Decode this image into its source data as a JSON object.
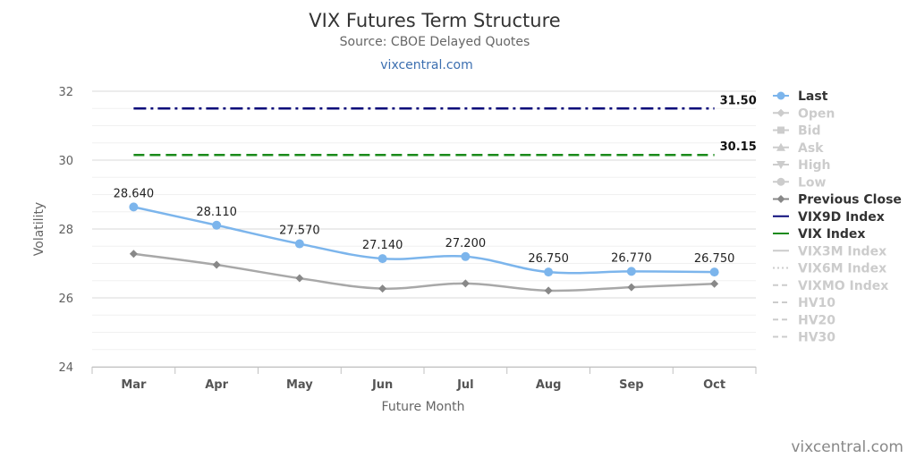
{
  "chart_data": {
    "type": "line",
    "title": "VIX Futures Term Structure",
    "subtitle": "Source: CBOE Delayed Quotes",
    "site_link": "vixcentral.com",
    "credit": "vixcentral.com",
    "xlabel": "Future Month",
    "ylabel": "Volatility",
    "categories": [
      "Mar",
      "Apr",
      "May",
      "Jun",
      "Jul",
      "Aug",
      "Sep",
      "Oct"
    ],
    "ylim": [
      24,
      32
    ],
    "yticks": [
      "24",
      "26",
      "28",
      "30",
      "32"
    ],
    "grid": true,
    "legend_position": "right",
    "series": [
      {
        "name": "Last",
        "values": [
          28.64,
          28.11,
          27.57,
          27.14,
          27.2,
          26.75,
          26.77,
          26.75
        ],
        "labels": [
          "28.640",
          "28.110",
          "27.570",
          "27.140",
          "27.200",
          "26.750",
          "26.770",
          "26.750"
        ],
        "color": "#7cb5ec",
        "marker": "circle",
        "active": true
      },
      {
        "name": "Previous Close",
        "values": [
          27.28,
          26.96,
          26.57,
          26.27,
          26.42,
          26.21,
          26.31,
          26.41
        ],
        "color": "#a8a8a8",
        "marker_color": "#888888",
        "marker": "diamond",
        "active": true
      }
    ],
    "reference_lines": [
      {
        "name": "VIX9D Index",
        "value": 31.5,
        "label": "31.50",
        "color": "#0b0b7a",
        "style": "dashdot"
      },
      {
        "name": "VIX Index",
        "value": 30.15,
        "label": "30.15",
        "color": "#1a8a1a",
        "style": "dash"
      }
    ],
    "legend": [
      {
        "name": "Last",
        "active": true,
        "color": "#7cb5ec",
        "symbol": "circle"
      },
      {
        "name": "Open",
        "active": false,
        "color": "#cccccc",
        "symbol": "diamond"
      },
      {
        "name": "Bid",
        "active": false,
        "color": "#cccccc",
        "symbol": "square"
      },
      {
        "name": "Ask",
        "active": false,
        "color": "#cccccc",
        "symbol": "triangle"
      },
      {
        "name": "High",
        "active": false,
        "color": "#cccccc",
        "symbol": "triangle-down"
      },
      {
        "name": "Low",
        "active": false,
        "color": "#cccccc",
        "symbol": "circle"
      },
      {
        "name": "Previous Close",
        "active": true,
        "color": "#888888",
        "symbol": "diamond"
      },
      {
        "name": "VIX9D Index",
        "active": true,
        "color": "#0b0b7a",
        "symbol": "line"
      },
      {
        "name": "VIX Index",
        "active": true,
        "color": "#1a8a1a",
        "symbol": "line"
      },
      {
        "name": "VIX3M Index",
        "active": false,
        "color": "#cccccc",
        "symbol": "line"
      },
      {
        "name": "VIX6M Index",
        "active": false,
        "color": "#cccccc",
        "symbol": "dotted"
      },
      {
        "name": "VIXMO Index",
        "active": false,
        "color": "#cccccc",
        "symbol": "dashed"
      },
      {
        "name": "HV10",
        "active": false,
        "color": "#cccccc",
        "symbol": "dashed"
      },
      {
        "name": "HV20",
        "active": false,
        "color": "#cccccc",
        "symbol": "dashed"
      },
      {
        "name": "HV30",
        "active": false,
        "color": "#cccccc",
        "symbol": "dashed"
      }
    ]
  }
}
